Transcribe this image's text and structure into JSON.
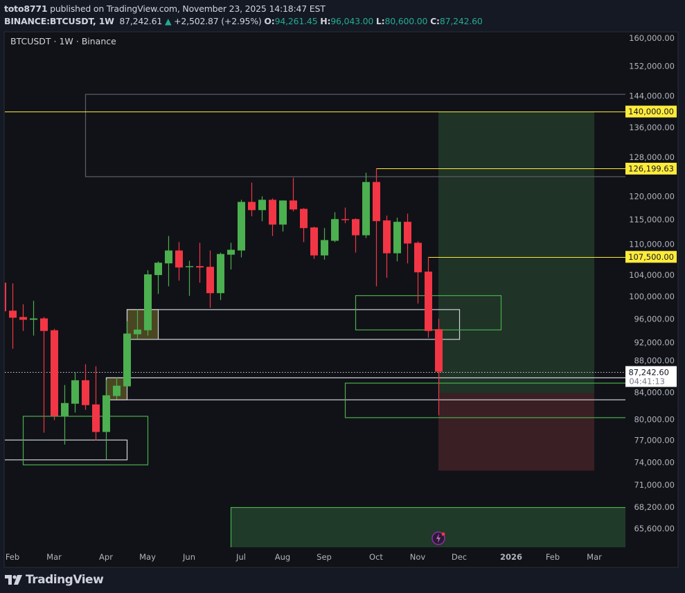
{
  "header": {
    "author": "toto8771",
    "published_text": "published on TradingView.com, November 23, 2025 14:18:47 EST",
    "symbol_interval": "BINANCE:BTCUSDT, 1W",
    "last_price": "87,242.61",
    "change_icon": "triangle-up-icon",
    "change": "+2,502.87 (+2.95%)",
    "o_label": "O:",
    "o_value": "94,261.45",
    "h_label": "H:",
    "h_value": "96,043.00",
    "l_label": "L:",
    "l_value": "80,600.00",
    "c_label": "C:",
    "c_value": "87,242.60",
    "value_color": "#22ab94"
  },
  "footer": {
    "logo_text": "TradingView"
  },
  "chart_data": {
    "type": "candlestick",
    "title": "BTCUSDT · 1W · Binance",
    "y_scale": "log",
    "ylim": [
      62500,
      163000
    ],
    "grid": false,
    "colors": {
      "up": "#4caf50",
      "down": "#f23645",
      "background": "#111217",
      "highlight": "#ffeb3b"
    },
    "y_ticks": [
      {
        "value": 160000,
        "label": "160,000.00"
      },
      {
        "value": 152000,
        "label": "152,000.00"
      },
      {
        "value": 144000,
        "label": "144,000.00"
      },
      {
        "value": 136000,
        "label": "136,000.00"
      },
      {
        "value": 128000,
        "label": "128,000.00"
      },
      {
        "value": 120000,
        "label": "120,000.00"
      },
      {
        "value": 115000,
        "label": "115,000.00"
      },
      {
        "value": 110000,
        "label": "110,000.00"
      },
      {
        "value": 104000,
        "label": "104,000.00"
      },
      {
        "value": 100000,
        "label": "100,000.00"
      },
      {
        "value": 96000,
        "label": "96,000.00"
      },
      {
        "value": 92000,
        "label": "92,000.00"
      },
      {
        "value": 88000,
        "label": "88,000.00"
      },
      {
        "value": 84000,
        "label": "84,000.00"
      },
      {
        "value": 80000,
        "label": "80,000.00"
      },
      {
        "value": 77000,
        "label": "77,000.00"
      },
      {
        "value": 74000,
        "label": "74,000.00"
      },
      {
        "value": 71000,
        "label": "71,000.00"
      },
      {
        "value": 68200,
        "label": "68,200.00"
      },
      {
        "value": 65600,
        "label": "65,600.00"
      }
    ],
    "x_ticks": [
      {
        "date": "2025-02-03",
        "label": "Feb"
      },
      {
        "date": "2025-03-03",
        "label": "Mar"
      },
      {
        "date": "2025-04-07",
        "label": "Apr"
      },
      {
        "date": "2025-05-05",
        "label": "May"
      },
      {
        "date": "2025-06-02",
        "label": "Jun"
      },
      {
        "date": "2025-07-07",
        "label": "Jul"
      },
      {
        "date": "2025-08-04",
        "label": "Aug"
      },
      {
        "date": "2025-09-01",
        "label": "Sep"
      },
      {
        "date": "2025-10-06",
        "label": "Oct"
      },
      {
        "date": "2025-11-03",
        "label": "Nov"
      },
      {
        "date": "2025-12-01",
        "label": "Dec"
      },
      {
        "date": "2026-01-05",
        "label": "2026"
      },
      {
        "date": "2026-02-02",
        "label": "Feb"
      },
      {
        "date": "2026-03-02",
        "label": "Mar"
      }
    ],
    "candles": [
      {
        "d": "2025-01-27",
        "o": 102560,
        "h": 102700,
        "l": 97200,
        "c": 97380
      },
      {
        "d": "2025-02-03",
        "o": 97480,
        "h": 102430,
        "l": 90960,
        "c": 96240
      },
      {
        "d": "2025-02-10",
        "o": 96360,
        "h": 98615,
        "l": 93950,
        "c": 95880
      },
      {
        "d": "2025-02-17",
        "o": 95880,
        "h": 99245,
        "l": 93160,
        "c": 96120
      },
      {
        "d": "2025-02-24",
        "o": 96120,
        "h": 96360,
        "l": 78090,
        "c": 93950
      },
      {
        "d": "2025-03-03",
        "o": 94070,
        "h": 94300,
        "l": 79900,
        "c": 80500
      },
      {
        "d": "2025-03-10",
        "o": 80500,
        "h": 85160,
        "l": 76420,
        "c": 82410
      },
      {
        "d": "2025-03-17",
        "o": 82310,
        "h": 87110,
        "l": 81010,
        "c": 85900
      },
      {
        "d": "2025-03-24",
        "o": 85900,
        "h": 88440,
        "l": 81400,
        "c": 82100
      },
      {
        "d": "2025-03-31",
        "o": 82200,
        "h": 88110,
        "l": 77000,
        "c": 78190
      },
      {
        "d": "2025-04-07",
        "o": 78190,
        "h": 85920,
        "l": 74370,
        "c": 83580
      },
      {
        "d": "2025-04-14",
        "o": 83470,
        "h": 86300,
        "l": 82950,
        "c": 85050
      },
      {
        "d": "2025-04-21",
        "o": 84950,
        "h": 95640,
        "l": 84950,
        "c": 93510
      },
      {
        "d": "2025-04-28",
        "o": 93390,
        "h": 97730,
        "l": 92580,
        "c": 94190
      },
      {
        "d": "2025-05-05",
        "o": 94070,
        "h": 104920,
        "l": 93160,
        "c": 104130
      },
      {
        "d": "2025-05-12",
        "o": 104000,
        "h": 106620,
        "l": 100500,
        "c": 106360
      },
      {
        "d": "2025-05-19",
        "o": 106230,
        "h": 111660,
        "l": 101900,
        "c": 108750
      },
      {
        "d": "2025-05-26",
        "o": 108750,
        "h": 110420,
        "l": 102950,
        "c": 105440
      },
      {
        "d": "2025-06-02",
        "o": 105570,
        "h": 106750,
        "l": 100130,
        "c": 105700
      },
      {
        "d": "2025-06-09",
        "o": 105700,
        "h": 110280,
        "l": 102560,
        "c": 105440
      },
      {
        "d": "2025-06-16",
        "o": 105570,
        "h": 108750,
        "l": 97980,
        "c": 100630
      },
      {
        "d": "2025-06-23",
        "o": 100630,
        "h": 108330,
        "l": 99370,
        "c": 108060
      },
      {
        "d": "2025-06-30",
        "o": 107920,
        "h": 110280,
        "l": 105050,
        "c": 108890
      },
      {
        "d": "2025-07-07",
        "o": 108750,
        "h": 119250,
        "l": 107400,
        "c": 118790
      },
      {
        "d": "2025-07-14",
        "o": 118790,
        "h": 123020,
        "l": 115720,
        "c": 117030
      },
      {
        "d": "2025-07-21",
        "o": 117030,
        "h": 120000,
        "l": 114710,
        "c": 119250
      },
      {
        "d": "2025-07-28",
        "o": 119250,
        "h": 119550,
        "l": 111660,
        "c": 113990
      },
      {
        "d": "2025-08-04",
        "o": 113990,
        "h": 119100,
        "l": 112560,
        "c": 119100
      },
      {
        "d": "2025-08-11",
        "o": 119100,
        "h": 124130,
        "l": 116760,
        "c": 117170
      },
      {
        "d": "2025-08-18",
        "o": 117300,
        "h": 117440,
        "l": 110420,
        "c": 113270
      },
      {
        "d": "2025-08-25",
        "o": 113400,
        "h": 113550,
        "l": 107100,
        "c": 107780
      },
      {
        "d": "2025-09-01",
        "o": 107780,
        "h": 113270,
        "l": 106960,
        "c": 110830
      },
      {
        "d": "2025-09-08",
        "o": 110690,
        "h": 116590,
        "l": 110420,
        "c": 115140
      },
      {
        "d": "2025-09-15",
        "o": 115140,
        "h": 117580,
        "l": 114280,
        "c": 115000
      },
      {
        "d": "2025-09-22",
        "o": 115140,
        "h": 115290,
        "l": 108340,
        "c": 111800
      },
      {
        "d": "2025-09-29",
        "o": 111800,
        "h": 125260,
        "l": 111250,
        "c": 123170
      },
      {
        "d": "2025-10-06",
        "o": 123170,
        "h": 126199.63,
        "l": 101900,
        "c": 114710
      },
      {
        "d": "2025-10-13",
        "o": 114860,
        "h": 115870,
        "l": 103480,
        "c": 108200
      },
      {
        "d": "2025-10-20",
        "o": 108200,
        "h": 115440,
        "l": 106620,
        "c": 114570
      },
      {
        "d": "2025-10-27",
        "o": 114570,
        "h": 116300,
        "l": 106230,
        "c": 110140
      },
      {
        "d": "2025-11-03",
        "o": 110280,
        "h": 110560,
        "l": 98750,
        "c": 104520
      },
      {
        "d": "2025-11-10",
        "o": 104650,
        "h": 107500,
        "l": 92800,
        "c": 93950
      },
      {
        "d": "2025-11-17",
        "o": 94261.45,
        "h": 96043.0,
        "l": 80600.0,
        "c": 87242.6
      }
    ],
    "current_price": {
      "value": 87242.6,
      "label": "87,242.60",
      "countdown": "04:41:13"
    },
    "price_lines": [
      {
        "value": 140000,
        "label": "140,000.00",
        "from": null
      },
      {
        "value": 126199.63,
        "label": "126,199.63",
        "from": "2025-10-06"
      },
      {
        "value": 107500,
        "label": "107,500.00",
        "from": "2025-11-10"
      }
    ],
    "rectangles": [
      {
        "name": "gray-zone",
        "from": "2025-03-24",
        "to": null,
        "top": 144540,
        "bottom": 124450,
        "stroke": "#5d606b",
        "fill": "none"
      },
      {
        "name": "white-zone-upper",
        "from": "2025-04-21",
        "to": "2025-12-01",
        "top": 97730,
        "bottom": 92580,
        "stroke": "#d1d4dc",
        "fill": "none"
      },
      {
        "name": "olive-block-upper",
        "from": "2025-04-21",
        "to": "2025-05-12",
        "top": 97730,
        "bottom": 92580,
        "stroke": "#d1d4dc",
        "fill": "#4a4622"
      },
      {
        "name": "white-zone-lower",
        "from": "2025-04-07",
        "to": null,
        "top": 86330,
        "bottom": 82950,
        "stroke": "#d1d4dc",
        "fill": "none"
      },
      {
        "name": "olive-block-lower",
        "from": "2025-04-07",
        "to": "2025-04-21",
        "top": 86330,
        "bottom": 82950,
        "stroke": "#d1d4dc",
        "fill": "#4a4622"
      },
      {
        "name": "green-zone-mid",
        "from": "2025-09-22",
        "to": "2025-12-29",
        "top": 100250,
        "bottom": 94190,
        "stroke": "#4caf50",
        "fill": "none"
      },
      {
        "name": "green-zone-right",
        "from": "2025-09-15",
        "to": null,
        "top": 85500,
        "bottom": 80300,
        "stroke": "#4caf50",
        "fill": "none"
      },
      {
        "name": "white-zone-left",
        "from": "2025-01-20",
        "to": "2025-04-21",
        "top": 77100,
        "bottom": 74370,
        "stroke": "#d1d4dc",
        "fill": "none"
      },
      {
        "name": "green-zone-left",
        "from": "2025-02-10",
        "to": "2025-05-05",
        "top": 80500,
        "bottom": 73700,
        "stroke": "#4caf50",
        "fill": "none"
      },
      {
        "name": "green-zone-bottom",
        "from": "2025-06-30",
        "to": null,
        "top": 68200,
        "bottom": 60000,
        "stroke": "#4caf50",
        "fill": "#1f3a29"
      }
    ],
    "long_position": {
      "from": "2025-11-17",
      "to": "2026-03-02",
      "target": 140000,
      "entry": 83900,
      "stop": 72880,
      "profit_color": "#1f3326",
      "loss_color": "#3a1f24"
    },
    "event_icon": "lightning-icon"
  }
}
